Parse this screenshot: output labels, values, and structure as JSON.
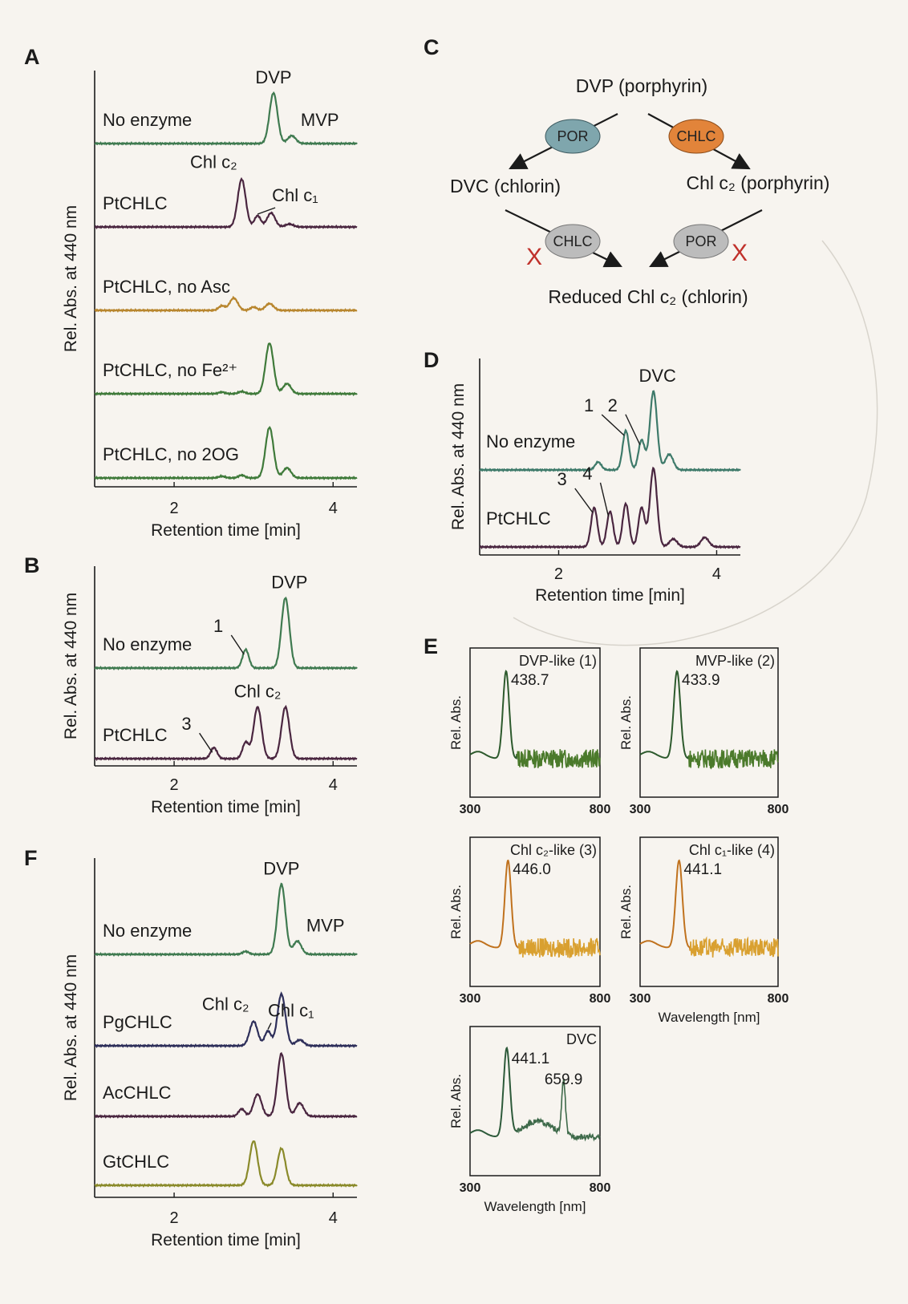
{
  "chart_data": [
    {
      "id": "A",
      "panel_label": "A",
      "type": "line",
      "ylabel": "Rel. Abs. at 440 nm",
      "xlabel": "Retention time [min]",
      "xlim": [
        1.0,
        4.3
      ],
      "xticks": [
        "2",
        "4"
      ],
      "traces": [
        {
          "name": "No enzyme",
          "color": "#3f7a50",
          "peaks": [
            {
              "x": 3.25,
              "h": 0.9,
              "w": 0.05
            },
            {
              "x": 3.48,
              "h": 0.14,
              "w": 0.05
            }
          ],
          "annotations": [
            {
              "text": "DVP",
              "x": 3.25
            },
            {
              "text": "MVP",
              "x": 3.48
            }
          ]
        },
        {
          "name": "PtCHLC",
          "color": "#4a2640",
          "peaks": [
            {
              "x": 2.85,
              "h": 0.85,
              "w": 0.05
            },
            {
              "x": 3.05,
              "h": 0.2,
              "w": 0.04
            },
            {
              "x": 3.22,
              "h": 0.25,
              "w": 0.05
            },
            {
              "x": 3.45,
              "h": 0.05,
              "w": 0.05
            }
          ],
          "annotations": [
            {
              "text": "Chl c₂",
              "x": 2.85
            },
            {
              "text": "Chl c₁",
              "x": 3.05
            }
          ]
        },
        {
          "name": "PtCHLC, no Asc",
          "color": "#b8862e",
          "peaks": [
            {
              "x": 2.6,
              "h": 0.08,
              "w": 0.04
            },
            {
              "x": 2.75,
              "h": 0.22,
              "w": 0.05
            },
            {
              "x": 3.0,
              "h": 0.06,
              "w": 0.04
            },
            {
              "x": 3.2,
              "h": 0.12,
              "w": 0.05
            }
          ],
          "annotations": []
        },
        {
          "name": "PtCHLC, no Fe²⁺",
          "color": "#3f7a3a",
          "peaks": [
            {
              "x": 2.6,
              "h": 0.03,
              "w": 0.04
            },
            {
              "x": 2.85,
              "h": 0.04,
              "w": 0.04
            },
            {
              "x": 3.2,
              "h": 0.9,
              "w": 0.05
            },
            {
              "x": 3.42,
              "h": 0.18,
              "w": 0.05
            }
          ],
          "annotations": []
        },
        {
          "name": "PtCHLC, no 2OG",
          "color": "#3f7a3a",
          "peaks": [
            {
              "x": 2.6,
              "h": 0.03,
              "w": 0.04
            },
            {
              "x": 2.85,
              "h": 0.05,
              "w": 0.04
            },
            {
              "x": 3.2,
              "h": 0.9,
              "w": 0.05
            },
            {
              "x": 3.42,
              "h": 0.18,
              "w": 0.05
            }
          ],
          "annotations": []
        }
      ]
    },
    {
      "id": "B",
      "panel_label": "B",
      "type": "line",
      "ylabel": "Rel. Abs. at 440 nm",
      "xlabel": "Retention time [min]",
      "xlim": [
        1.0,
        4.3
      ],
      "xticks": [
        "2",
        "4"
      ],
      "traces": [
        {
          "name": "No enzyme",
          "color": "#3f7a50",
          "peaks": [
            {
              "x": 2.9,
              "h": 0.25,
              "w": 0.04
            },
            {
              "x": 3.4,
              "h": 0.95,
              "w": 0.05
            }
          ],
          "annotations": [
            {
              "text": "1",
              "x": 2.9
            },
            {
              "text": "DVP",
              "x": 3.4
            }
          ]
        },
        {
          "name": "PtCHLC",
          "color": "#4a2640",
          "peaks": [
            {
              "x": 2.5,
              "h": 0.15,
              "w": 0.04
            },
            {
              "x": 2.9,
              "h": 0.22,
              "w": 0.04
            },
            {
              "x": 3.05,
              "h": 0.7,
              "w": 0.05
            },
            {
              "x": 3.4,
              "h": 0.7,
              "w": 0.05
            }
          ],
          "annotations": [
            {
              "text": "3",
              "x": 2.5
            },
            {
              "text": "Chl c₂",
              "x": 3.05
            }
          ]
        }
      ]
    },
    {
      "id": "F",
      "panel_label": "F",
      "type": "line",
      "ylabel": "Rel. Abs. at 440 nm",
      "xlabel": "Retention time [min]",
      "xlim": [
        1.0,
        4.3
      ],
      "xticks": [
        "2",
        "4"
      ],
      "traces": [
        {
          "name": "No enzyme",
          "color": "#3f7a50",
          "peaks": [
            {
              "x": 2.9,
              "h": 0.04,
              "w": 0.04
            },
            {
              "x": 3.35,
              "h": 0.95,
              "w": 0.05
            },
            {
              "x": 3.55,
              "h": 0.18,
              "w": 0.05
            }
          ],
          "annotations": [
            {
              "text": "DVP",
              "x": 3.35
            },
            {
              "text": "MVP",
              "x": 3.55
            }
          ]
        },
        {
          "name": "PgCHLC",
          "color": "#2e2f5a",
          "peaks": [
            {
              "x": 3.0,
              "h": 0.33,
              "w": 0.05
            },
            {
              "x": 3.18,
              "h": 0.2,
              "w": 0.04
            },
            {
              "x": 3.35,
              "h": 0.7,
              "w": 0.05
            },
            {
              "x": 3.58,
              "h": 0.08,
              "w": 0.05
            }
          ],
          "annotations": [
            {
              "text": "Chl c₂",
              "x": 3.0
            },
            {
              "text": "Chl c₁",
              "x": 3.18
            }
          ]
        },
        {
          "name": "AcCHLC",
          "color": "#4a2640",
          "peaks": [
            {
              "x": 2.85,
              "h": 0.1,
              "w": 0.04
            },
            {
              "x": 3.05,
              "h": 0.3,
              "w": 0.05
            },
            {
              "x": 3.35,
              "h": 0.85,
              "w": 0.05
            },
            {
              "x": 3.58,
              "h": 0.18,
              "w": 0.05
            }
          ],
          "annotations": []
        },
        {
          "name": "GtCHLC",
          "color": "#8a8a2a",
          "peaks": [
            {
              "x": 3.0,
              "h": 0.6,
              "w": 0.05
            },
            {
              "x": 3.35,
              "h": 0.5,
              "w": 0.05
            }
          ],
          "annotations": []
        }
      ]
    },
    {
      "id": "D",
      "panel_label": "D",
      "type": "line",
      "ylabel": "Rel. Abs. at 440 nm",
      "xlabel": "Retention time [min]",
      "xlim": [
        1.0,
        4.3
      ],
      "xticks": [
        "2",
        "4"
      ],
      "traces": [
        {
          "name": "No enzyme",
          "color": "#3e7a6a",
          "peaks": [
            {
              "x": 2.5,
              "h": 0.1,
              "w": 0.04
            },
            {
              "x": 2.85,
              "h": 0.5,
              "w": 0.04
            },
            {
              "x": 3.05,
              "h": 0.38,
              "w": 0.04
            },
            {
              "x": 3.2,
              "h": 1.0,
              "w": 0.045
            },
            {
              "x": 3.4,
              "h": 0.2,
              "w": 0.05
            }
          ],
          "annotations": [
            {
              "text": "1",
              "x": 2.85
            },
            {
              "text": "2",
              "x": 3.05
            },
            {
              "text": "DVC",
              "x": 3.2
            }
          ]
        },
        {
          "name": "PtCHLC",
          "color": "#4a2640",
          "peaks": [
            {
              "x": 2.45,
              "h": 0.5,
              "w": 0.04
            },
            {
              "x": 2.65,
              "h": 0.45,
              "w": 0.04
            },
            {
              "x": 2.85,
              "h": 0.55,
              "w": 0.04
            },
            {
              "x": 3.05,
              "h": 0.5,
              "w": 0.04
            },
            {
              "x": 3.2,
              "h": 1.0,
              "w": 0.045
            },
            {
              "x": 3.45,
              "h": 0.1,
              "w": 0.05
            },
            {
              "x": 3.85,
              "h": 0.12,
              "w": 0.05
            }
          ],
          "annotations": [
            {
              "text": "3",
              "x": 2.45
            },
            {
              "text": "4",
              "x": 2.65
            }
          ]
        }
      ]
    },
    {
      "id": "E",
      "panel_label": "E",
      "type": "line",
      "xlabel": "Wavelength [nm]",
      "ylabel": "Rel. Abs.",
      "xlim": [
        300,
        800
      ],
      "spectra": [
        {
          "title": "DVP-like (1)",
          "peak_label": "438.7",
          "peak_nm": 438.7,
          "color": "#2d5a2d",
          "noise_color": "#4b7a2b",
          "second_peak_nm": null,
          "second_peak_label": ""
        },
        {
          "title": "MVP-like (2)",
          "peak_label": "433.9",
          "peak_nm": 433.9,
          "color": "#2d5a2d",
          "noise_color": "#4b7a2b",
          "second_peak_nm": null,
          "second_peak_label": ""
        },
        {
          "title": "Chl c₂-like (3)",
          "peak_label": "446.0",
          "peak_nm": 446.0,
          "color": "#c0721e",
          "noise_color": "#d9a030",
          "second_peak_nm": null,
          "second_peak_label": ""
        },
        {
          "title": "Chl c₁-like (4)",
          "peak_label": "441.1",
          "peak_nm": 441.1,
          "color": "#c0721e",
          "noise_color": "#d9a030",
          "second_peak_nm": null,
          "second_peak_label": ""
        },
        {
          "title": "DVC",
          "peak_label": "441.1",
          "peak_nm": 441.1,
          "color": "#2d5a3a",
          "noise_color": "#3e6a4a",
          "second_peak_nm": 659.9,
          "second_peak_label": "659.9"
        }
      ]
    }
  ],
  "scheme": {
    "panel_label": "C",
    "top": "DVP (porphyrin)",
    "left": "DVC (chlorin)",
    "right": "Chl c₂ (porphyrin)",
    "bottom": "Reduced Chl c₂ (chlorin)",
    "enzyme_por": "POR",
    "enzyme_chlc": "CHLC",
    "blocked_mark": "X",
    "colors": {
      "por": "#7fa6ad",
      "chlc": "#e2843a",
      "gray": "#bcbcbc",
      "x": "#c0312b"
    }
  }
}
